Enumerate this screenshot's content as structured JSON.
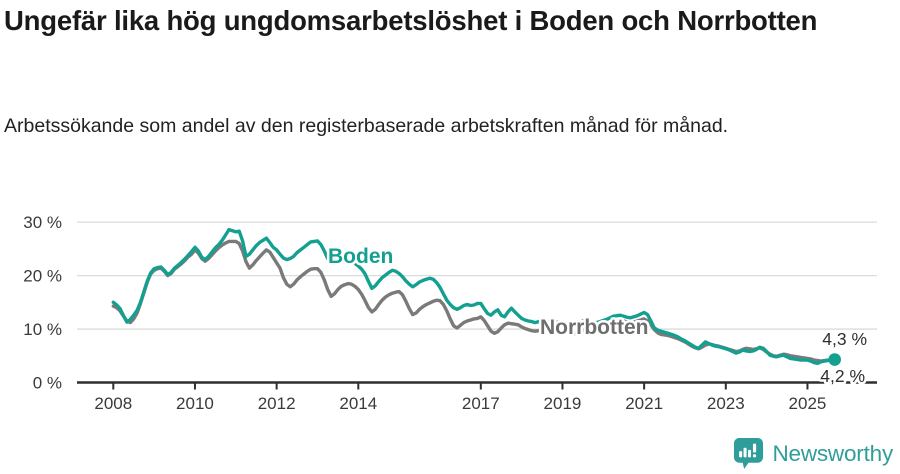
{
  "title": "Ungefär lika hög ungdomsarbetslöshet i Boden och Norrbotten",
  "subtitle": "Arbetssökande som andel av den registerbaserade arbetskraften månad för månad.",
  "branding": {
    "logo_text": "Newsworthy",
    "logo_icon": "newsworthy-speech-bubble-bar-chart-icon",
    "logo_color": "#2f9e9a"
  },
  "colors": {
    "boden_line": "#14a091",
    "norrbotten_line": "#7a7a7a",
    "norrbotten_label": "#6e6e6e",
    "grid": "#dcdcdc",
    "axis": "#2f2f2f",
    "tick_text": "#3a3a3a",
    "end_label_text": "#2f2f2f"
  },
  "chart_data": {
    "type": "line",
    "unit": "%",
    "frequency": "monthly",
    "x_range": {
      "start": "2008-01",
      "end": "2025-09"
    },
    "grid": true,
    "ylim": [
      0,
      32
    ],
    "y_ticks": [
      {
        "value": 0,
        "label": "0 %"
      },
      {
        "value": 10,
        "label": "10 %"
      },
      {
        "value": 20,
        "label": "20 %"
      },
      {
        "value": 30,
        "label": "30 %"
      }
    ],
    "x_ticks": [
      {
        "year": 2008,
        "label": "2008"
      },
      {
        "year": 2010,
        "label": "2010"
      },
      {
        "year": 2012,
        "label": "2012"
      },
      {
        "year": 2014,
        "label": "2014"
      },
      {
        "year": 2017,
        "label": "2017"
      },
      {
        "year": 2019,
        "label": "2019"
      },
      {
        "year": 2021,
        "label": "2021"
      },
      {
        "year": 2023,
        "label": "2023"
      },
      {
        "year": 2025,
        "label": "2025"
      }
    ],
    "series": [
      {
        "name": "Boden",
        "color": "#14a091",
        "end_label": "4,3 %",
        "end_marker": true,
        "values": [
          15.0,
          14.5,
          13.8,
          12.5,
          11.3,
          11.8,
          12.6,
          13.5,
          15.0,
          17.0,
          19.0,
          20.5,
          21.3,
          21.5,
          21.6,
          21.0,
          20.2,
          20.6,
          21.4,
          21.9,
          22.5,
          23.1,
          23.8,
          24.5,
          25.3,
          24.6,
          23.4,
          23.0,
          23.6,
          24.4,
          25.2,
          25.8,
          26.6,
          27.6,
          28.6,
          28.4,
          28.2,
          28.3,
          26.5,
          23.6,
          24.0,
          24.8,
          25.6,
          26.2,
          26.6,
          27.0,
          26.2,
          25.3,
          24.8,
          24.0,
          23.3,
          23.0,
          23.2,
          23.6,
          24.3,
          24.8,
          25.3,
          25.8,
          26.3,
          26.4,
          26.5,
          25.8,
          24.6,
          23.2,
          22.4,
          22.9,
          23.6,
          24.1,
          23.9,
          23.4,
          22.9,
          22.3,
          21.8,
          21.2,
          20.3,
          18.9,
          17.6,
          18.1,
          18.9,
          19.6,
          20.1,
          20.6,
          21.0,
          20.8,
          20.4,
          19.8,
          19.0,
          18.4,
          17.9,
          18.3,
          18.8,
          19.1,
          19.3,
          19.5,
          19.3,
          18.7,
          17.8,
          16.6,
          15.4,
          14.6,
          14.0,
          13.7,
          14.0,
          14.4,
          14.6,
          14.4,
          14.5,
          14.8,
          14.8,
          13.8,
          12.9,
          12.6,
          13.2,
          13.6,
          12.6,
          12.3,
          13.2,
          13.9,
          13.2,
          12.6,
          12.0,
          11.7,
          11.5,
          11.4,
          11.2,
          11.4,
          11.6,
          11.5,
          11.3,
          11.1,
          11.2,
          11.3,
          11.3,
          11.1,
          10.9,
          10.7,
          10.9,
          11.2,
          11.5,
          11.4,
          11.2,
          11.1,
          11.2,
          11.4,
          11.6,
          11.8,
          12.1,
          12.4,
          12.5,
          12.6,
          12.4,
          12.2,
          12.1,
          12.3,
          12.5,
          12.8,
          13.1,
          12.7,
          11.5,
          10.2,
          9.8,
          9.6,
          9.4,
          9.2,
          9.0,
          8.8,
          8.5,
          8.1,
          7.8,
          7.4,
          7.0,
          6.6,
          6.4,
          7.0,
          7.6,
          7.3,
          7.0,
          6.8,
          6.7,
          6.5,
          6.3,
          6.1,
          5.8,
          5.5,
          5.7,
          6.1,
          5.9,
          5.8,
          5.9,
          6.2,
          6.6,
          6.4,
          5.8,
          5.1,
          4.9,
          4.8,
          5.0,
          5.1,
          4.8,
          4.5,
          4.4,
          4.3,
          4.2,
          4.2,
          4.2,
          4.0,
          3.7,
          3.6,
          3.9,
          4.0,
          4.1,
          4.2,
          4.3
        ]
      },
      {
        "name": "Norrbotten",
        "color": "#7a7a7a",
        "end_label": "4,2 %",
        "end_marker": false,
        "values": [
          14.3,
          14.0,
          13.4,
          12.4,
          11.5,
          11.2,
          11.9,
          13.0,
          14.8,
          16.8,
          18.8,
          20.3,
          21.0,
          21.3,
          21.4,
          20.8,
          20.0,
          20.4,
          21.2,
          21.7,
          22.2,
          22.8,
          23.5,
          24.0,
          24.8,
          24.2,
          23.2,
          22.7,
          23.2,
          23.9,
          24.6,
          25.2,
          25.7,
          26.1,
          26.4,
          26.4,
          26.4,
          26.0,
          24.6,
          22.6,
          21.4,
          22.0,
          22.8,
          23.5,
          24.2,
          24.8,
          24.4,
          23.4,
          22.4,
          21.4,
          19.6,
          18.4,
          17.9,
          18.4,
          19.2,
          19.8,
          20.3,
          20.8,
          21.2,
          21.3,
          21.3,
          20.6,
          19.2,
          17.4,
          16.1,
          16.6,
          17.4,
          18.0,
          18.3,
          18.5,
          18.4,
          18.0,
          17.4,
          16.5,
          15.3,
          14.0,
          13.2,
          13.7,
          14.6,
          15.4,
          16.0,
          16.4,
          16.7,
          16.9,
          17.0,
          16.4,
          15.2,
          13.8,
          12.7,
          13.0,
          13.7,
          14.2,
          14.6,
          14.9,
          15.2,
          15.4,
          15.3,
          14.6,
          13.4,
          11.9,
          10.6,
          10.2,
          10.7,
          11.2,
          11.5,
          11.7,
          11.9,
          12.0,
          12.3,
          11.6,
          10.6,
          9.6,
          9.2,
          9.5,
          10.2,
          10.8,
          11.1,
          11.0,
          10.9,
          10.8,
          10.4,
          10.1,
          9.9,
          9.7,
          9.6,
          9.7,
          9.9,
          10.0,
          9.9,
          9.7,
          9.6,
          9.5,
          9.4,
          9.3,
          9.2,
          9.1,
          9.2,
          9.5,
          9.8,
          9.9,
          9.8,
          9.7,
          9.7,
          9.8,
          10.0,
          10.2,
          10.6,
          11.1,
          11.4,
          11.6,
          11.5,
          11.3,
          11.2,
          11.3,
          11.5,
          11.7,
          11.9,
          11.5,
          10.8,
          9.9,
          9.3,
          9.0,
          8.9,
          8.8,
          8.6,
          8.4,
          8.2,
          7.9,
          7.6,
          7.2,
          6.8,
          6.5,
          6.3,
          6.6,
          7.0,
          7.2,
          7.1,
          6.9,
          6.8,
          6.6,
          6.4,
          6.2,
          6.0,
          5.8,
          5.9,
          6.2,
          6.4,
          6.3,
          6.2,
          6.3,
          6.5,
          6.2,
          5.7,
          5.3,
          5.0,
          4.9,
          5.1,
          5.3,
          5.2,
          5.0,
          4.9,
          4.8,
          4.7,
          4.6,
          4.5,
          4.4,
          4.2,
          4.1,
          4.0,
          4.1,
          4.2,
          4.2,
          4.2
        ]
      }
    ]
  }
}
